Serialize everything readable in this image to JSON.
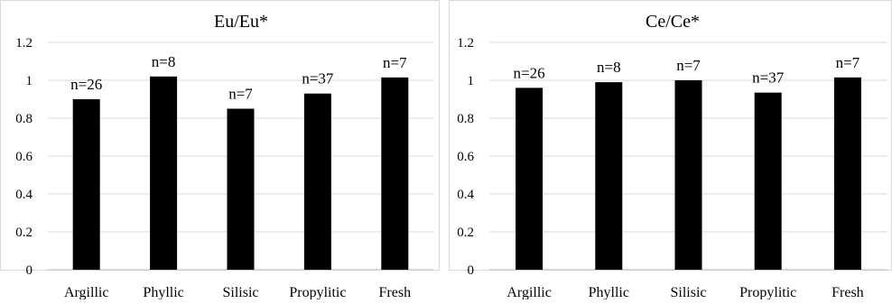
{
  "chart_data": [
    {
      "type": "bar",
      "title": "Eu/Eu*",
      "categories": [
        "Argillic",
        "Phyllic",
        "Silisic",
        "Propylitic",
        "Fresh"
      ],
      "values": [
        0.9,
        1.02,
        0.85,
        0.93,
        1.015
      ],
      "data_labels": [
        "n=26",
        "n=8",
        "n=7",
        "n=37",
        "n=7"
      ],
      "ylim": [
        0,
        1.2
      ],
      "yticks": [
        "0",
        "0.2",
        "0.4",
        "0.6",
        "0.8",
        "1",
        "1.2"
      ],
      "xlabel": "",
      "ylabel": "",
      "grid": true,
      "bar_color": "#000000",
      "grid_color": "#d9d9d9"
    },
    {
      "type": "bar",
      "title": "Ce/Ce*",
      "categories": [
        "Argillic",
        "Phyllic",
        "Silisic",
        "Propylitic",
        "Fresh"
      ],
      "values": [
        0.96,
        0.99,
        1.0,
        0.935,
        1.015
      ],
      "data_labels": [
        "n=26",
        "n=8",
        "n=7",
        "n=37",
        "n=7"
      ],
      "ylim": [
        0,
        1.2
      ],
      "yticks": [
        "0",
        "0.2",
        "0.4",
        "0.6",
        "0.8",
        "1",
        "1.2"
      ],
      "xlabel": "",
      "ylabel": "",
      "grid": true,
      "bar_color": "#000000",
      "grid_color": "#d9d9d9"
    }
  ]
}
